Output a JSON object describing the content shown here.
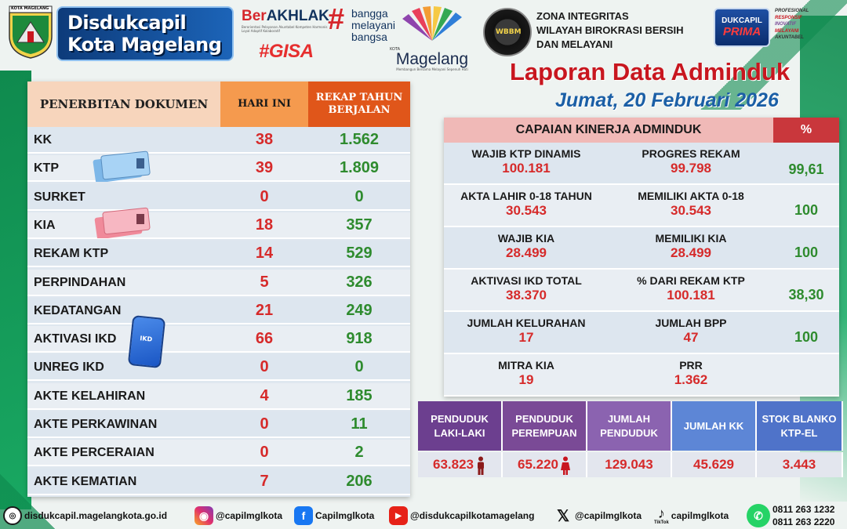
{
  "header": {
    "logo_caption": "KOTA MAGELANG",
    "brand_line1": "Disdukcapil",
    "brand_line2": "Kota Magelang",
    "berakhlak_ber": "Ber",
    "berakhlak_akhlak": "AKHLAK",
    "berakhlak_sub": "Berorientasi Pelayanan Akuntabel Kompeten Harmonis Loyal Adaptif Kolaboratif",
    "hash": "#",
    "bangga_l1": "bangga",
    "bangga_l2": "melayani",
    "bangga_l3": "bangsa",
    "gisa": "#GISA",
    "magelang_kota": "KOTA",
    "magelang_name": "Magelang",
    "magelang_tagline": "Membangun Bersama Melayani Sepenuh Hati",
    "zi_badge": "WBBM",
    "zi_l1": "ZONA INTEGRITAS",
    "zi_l2": "WILAYAH BIROKRASI BERSIH",
    "zi_l3": "DAN MELAYANI",
    "prima_l1": "DUKCAPIL",
    "prima_l2": "PRIMA",
    "motto": [
      "PROFESIONAL",
      "RESPONSIF",
      "INOVATIF",
      "MELAYANI",
      "AKUNTABEL"
    ],
    "title": "Laporan Data Adminduk",
    "date": "Jumat, 20 Februari 2026"
  },
  "documents": {
    "header_doc": "PENERBITAN DOKUMEN",
    "header_today": "HARI INI",
    "header_ytd": "REKAP TAHUN BERJALAN",
    "rows": [
      {
        "name": "KK",
        "today": "38",
        "ytd": "1.562"
      },
      {
        "name": "KTP",
        "today": "39",
        "ytd": "1.809"
      },
      {
        "name": "SURKET",
        "today": "0",
        "ytd": "0"
      },
      {
        "name": "KIA",
        "today": "18",
        "ytd": "357"
      },
      {
        "name": "REKAM KTP",
        "today": "14",
        "ytd": "529"
      },
      {
        "name": "PERPINDAHAN",
        "today": "5",
        "ytd": "326"
      },
      {
        "name": "KEDATANGAN",
        "today": "21",
        "ytd": "249"
      },
      {
        "name": "AKTIVASI IKD",
        "today": "66",
        "ytd": "918"
      },
      {
        "name": "UNREG IKD",
        "today": "0",
        "ytd": "0"
      },
      {
        "name": "AKTE KELAHIRAN",
        "today": "4",
        "ytd": "185"
      },
      {
        "name": "AKTE PERKAWINAN",
        "today": "0",
        "ytd": "11"
      },
      {
        "name": "AKTE PERCERAIAN",
        "today": "0",
        "ytd": "2"
      },
      {
        "name": "AKTE KEMATIAN",
        "today": "7",
        "ytd": "206"
      }
    ],
    "ikd_phone_label": "IKD"
  },
  "performance": {
    "header": "CAPAIAN KINERJA ADMINDUK",
    "pct_header": "%",
    "rows": [
      {
        "a_label": "WAJIB KTP DINAMIS",
        "a_val": "100.181",
        "b_label": "PROGRES REKAM",
        "b_val": "99.798",
        "pct": "99,61"
      },
      {
        "a_label": "AKTA LAHIR 0-18 TAHUN",
        "a_val": "30.543",
        "b_label": "MEMILIKI AKTA 0-18",
        "b_val": "30.543",
        "pct": "100"
      },
      {
        "a_label": "WAJIB KIA",
        "a_val": "28.499",
        "b_label": "MEMILIKI KIA",
        "b_val": "28.499",
        "pct": "100"
      },
      {
        "a_label": "AKTIVASI IKD TOTAL",
        "a_val": "38.370",
        "b_label": "% DARI REKAM KTP",
        "b_val": "100.181",
        "pct": "38,30"
      },
      {
        "a_label": "JUMLAH KELURAHAN",
        "a_val": "17",
        "b_label": "JUMLAH BPP",
        "b_val": "47",
        "pct": "100"
      },
      {
        "a_label": "MITRA KIA",
        "a_val": "19",
        "b_label": "PRR",
        "b_val": "1.362",
        "pct": ""
      }
    ]
  },
  "population": {
    "cols": [
      {
        "label": "PENDUDUK LAKI-LAKI",
        "value": "63.823",
        "color": "#6c3f8f"
      },
      {
        "label": "PENDUDUK PEREMPUAN",
        "value": "65.220",
        "color": "#7a4a96"
      },
      {
        "label": "JUMLAH PENDUDUK",
        "value": "129.043",
        "color": "#8b63b0"
      },
      {
        "label": "JUMLAH KK",
        "value": "45.629",
        "color": "#5d86d6"
      },
      {
        "label": "STOK BLANKO KTP-EL",
        "value": "3.443",
        "color": "#4f73c9"
      }
    ]
  },
  "footer": {
    "website": "disdukcapil.magelangkota.go.id",
    "instagram": "@capilmglkota",
    "facebook": "Capilmglkota",
    "youtube": "@disdukcapilkotamagelang",
    "x": "@capilmglkota",
    "tiktok": "capilmglkota",
    "tiktok_label": "TikTok",
    "phone1": "0811 263 1232",
    "phone2": "0811 263 2220"
  },
  "colors": {
    "accent_red": "#d62a2a",
    "accent_green": "#2e8b2e",
    "brand_blue": "#0d3b7a"
  }
}
